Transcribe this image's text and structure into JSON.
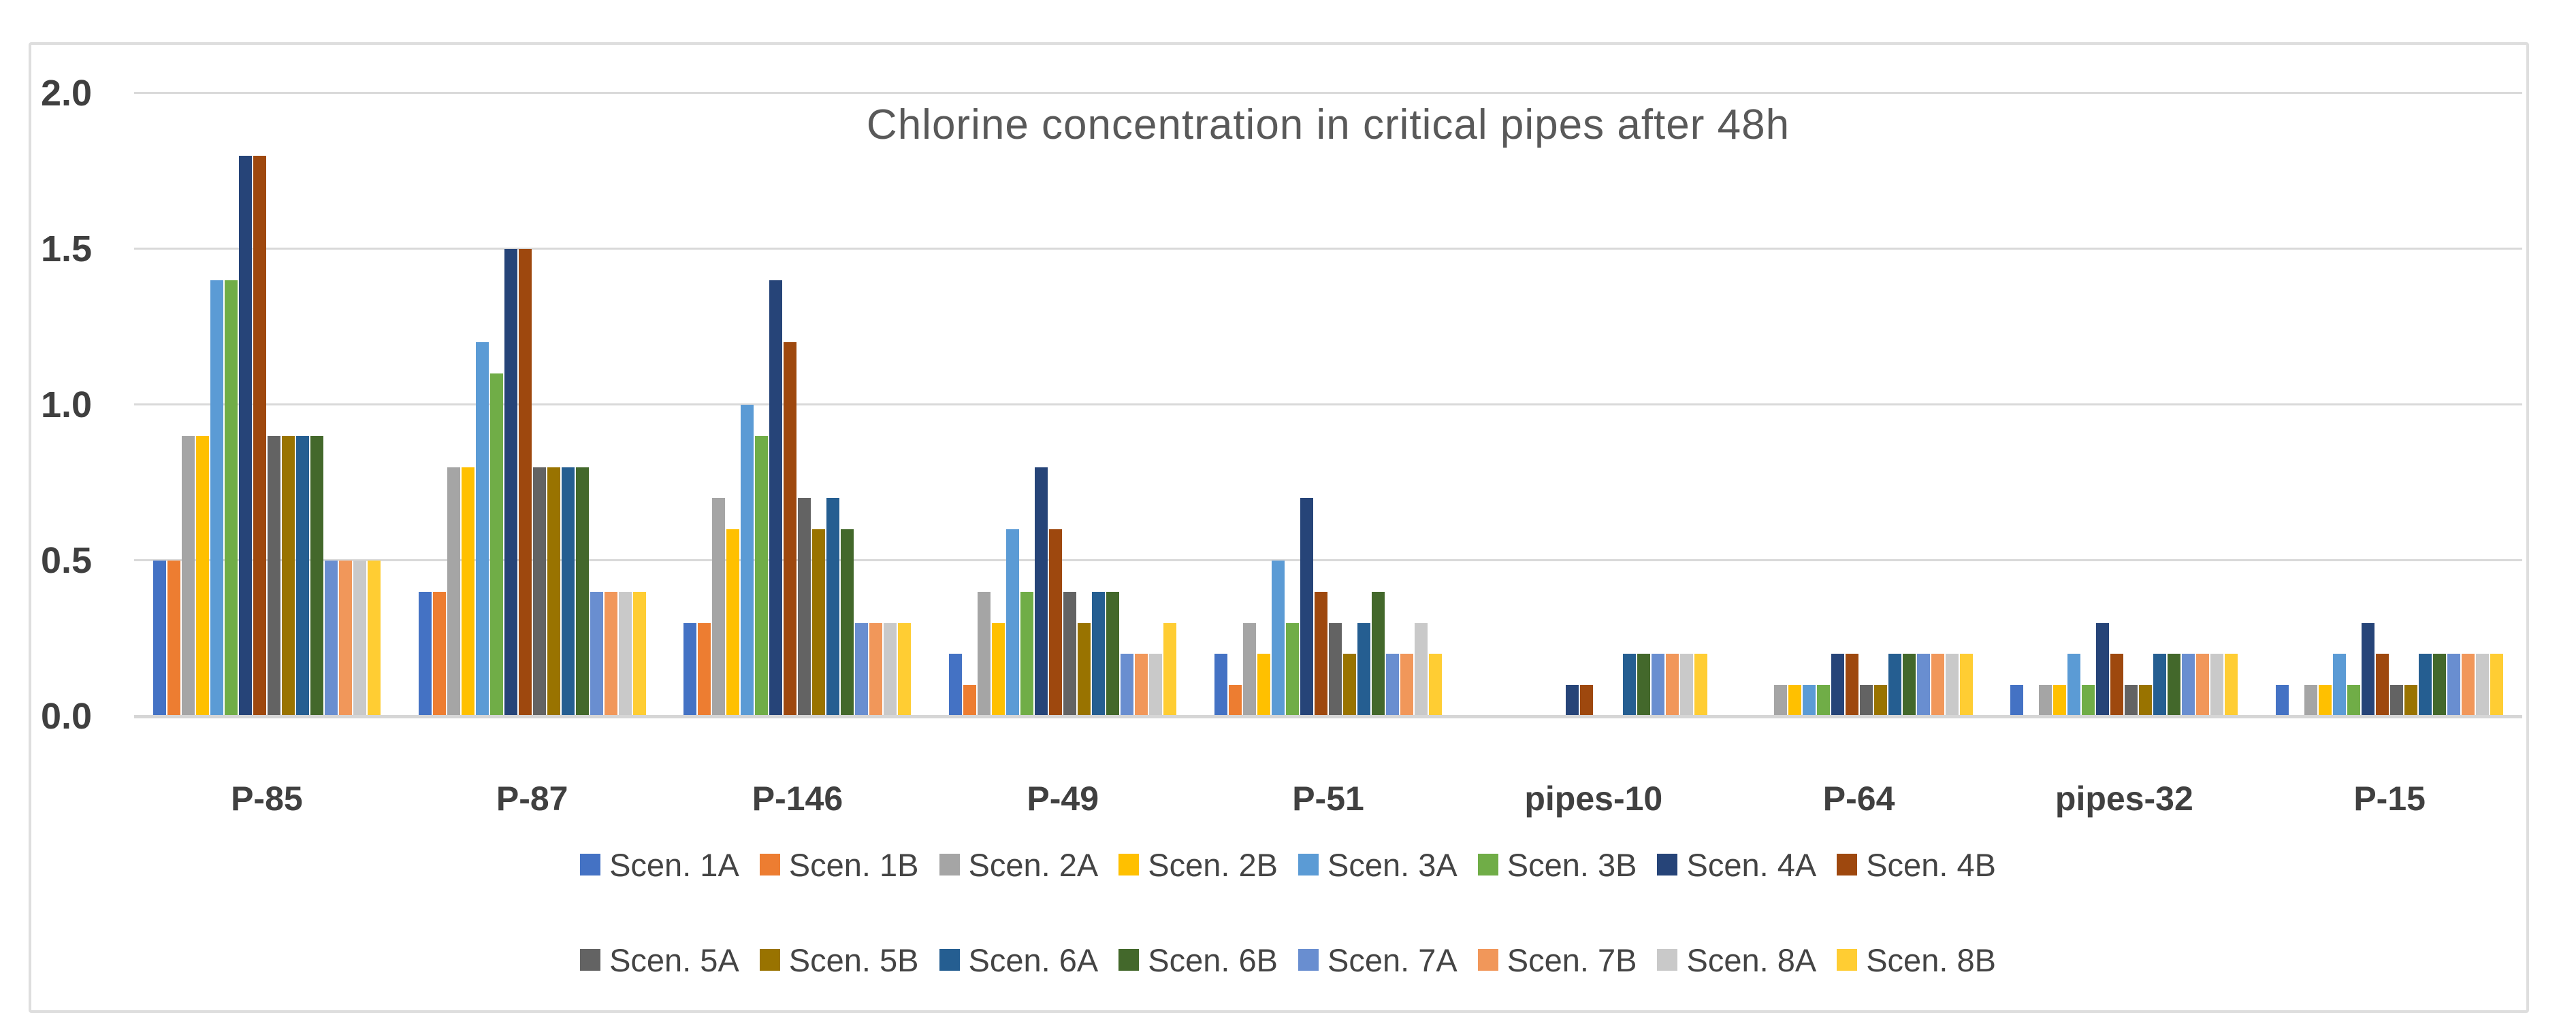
{
  "chart_data": {
    "type": "bar",
    "title": "Chlorine concentration in critical pipes after 48h",
    "xlabel": "",
    "ylabel": "",
    "ylim": [
      0.0,
      2.0
    ],
    "grid": true,
    "legend_position": "bottom",
    "legend_rows": 2,
    "yticks": [
      {
        "value": 2.0,
        "label": "2.0"
      },
      {
        "value": 1.5,
        "label": "1.5"
      },
      {
        "value": 1.0,
        "label": "1.0"
      },
      {
        "value": 0.5,
        "label": "0.5"
      },
      {
        "value": 0.0,
        "label": "0.0"
      }
    ],
    "categories": [
      "P-85",
      "P-87",
      "P-146",
      "P-49",
      "P-51",
      "pipes-10",
      "P-64",
      "pipes-32",
      "P-15"
    ],
    "series": [
      {
        "name": "Scen. 1A",
        "color": "#4472C4",
        "values": [
          0.5,
          0.4,
          0.3,
          0.2,
          0.2,
          0,
          0,
          0.1,
          0.1
        ]
      },
      {
        "name": "Scen. 1B",
        "color": "#ED7D31",
        "values": [
          0.5,
          0.4,
          0.3,
          0.1,
          0.1,
          0,
          0,
          0,
          0
        ]
      },
      {
        "name": "Scen. 2A",
        "color": "#A5A5A5",
        "values": [
          0.9,
          0.8,
          0.7,
          0.4,
          0.3,
          0,
          0.1,
          0.1,
          0.1
        ]
      },
      {
        "name": "Scen. 2B",
        "color": "#FFC000",
        "values": [
          0.9,
          0.8,
          0.6,
          0.3,
          0.2,
          0,
          0.1,
          0.1,
          0.1
        ]
      },
      {
        "name": "Scen. 3A",
        "color": "#5B9BD5",
        "values": [
          1.4,
          1.2,
          1.0,
          0.6,
          0.5,
          0,
          0.1,
          0.2,
          0.2
        ]
      },
      {
        "name": "Scen. 3B",
        "color": "#70AD47",
        "values": [
          1.4,
          1.1,
          0.9,
          0.4,
          0.3,
          0,
          0.1,
          0.1,
          0.1
        ]
      },
      {
        "name": "Scen. 4A",
        "color": "#264478",
        "values": [
          1.8,
          1.5,
          1.4,
          0.8,
          0.7,
          0.1,
          0.2,
          0.3,
          0.3
        ]
      },
      {
        "name": "Scen. 4B",
        "color": "#9E480E",
        "values": [
          1.8,
          1.5,
          1.2,
          0.6,
          0.4,
          0.1,
          0.2,
          0.2,
          0.2
        ]
      },
      {
        "name": "Scen. 5A",
        "color": "#636363",
        "values": [
          0.9,
          0.8,
          0.7,
          0.4,
          0.3,
          0,
          0.1,
          0.1,
          0.1
        ]
      },
      {
        "name": "Scen. 5B",
        "color": "#997300",
        "values": [
          0.9,
          0.8,
          0.6,
          0.3,
          0.2,
          0,
          0.1,
          0.1,
          0.1
        ]
      },
      {
        "name": "Scen. 6A",
        "color": "#255E91",
        "values": [
          0.9,
          0.8,
          0.7,
          0.4,
          0.3,
          0.2,
          0.2,
          0.2,
          0.2
        ]
      },
      {
        "name": "Scen. 6B",
        "color": "#43682B",
        "values": [
          0.9,
          0.8,
          0.6,
          0.4,
          0.4,
          0.2,
          0.2,
          0.2,
          0.2
        ]
      },
      {
        "name": "Scen. 7A",
        "color": "#698ED0",
        "values": [
          0.5,
          0.4,
          0.3,
          0.2,
          0.2,
          0.2,
          0.2,
          0.2,
          0.2
        ]
      },
      {
        "name": "Scen. 7B",
        "color": "#F1975A",
        "values": [
          0.5,
          0.4,
          0.3,
          0.2,
          0.2,
          0.2,
          0.2,
          0.2,
          0.2
        ]
      },
      {
        "name": "Scen. 8A",
        "color": "#C9C9C9",
        "values": [
          0.5,
          0.4,
          0.3,
          0.2,
          0.3,
          0.2,
          0.2,
          0.2,
          0.2
        ]
      },
      {
        "name": "Scen. 8B",
        "color": "#FFCD33",
        "values": [
          0.5,
          0.4,
          0.3,
          0.3,
          0.2,
          0.2,
          0.2,
          0.2,
          0.2
        ]
      }
    ],
    "colors": {
      "gridline": "#D9D9D9",
      "axis_line": "#D6D6D6",
      "title_text": "#595959",
      "tick_text": "#3F3F3F",
      "legend_text": "#444444",
      "frame_border": "#DEDEDE",
      "background": "#FFFFFF"
    }
  }
}
